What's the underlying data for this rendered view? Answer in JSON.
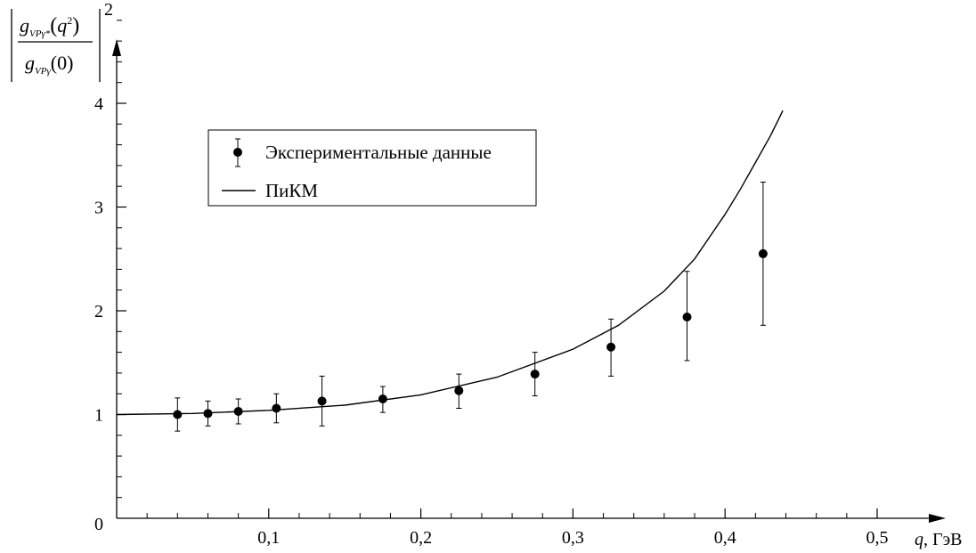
{
  "chart_data": {
    "type": "scatter",
    "xlim": [
      0,
      0.52
    ],
    "ylim": [
      0,
      4.5
    ],
    "x_ticks": [
      {
        "value": 0.1,
        "label": "0,1"
      },
      {
        "value": 0.2,
        "label": "0,2"
      },
      {
        "value": 0.3,
        "label": "0,3"
      },
      {
        "value": 0.4,
        "label": "0,4"
      },
      {
        "value": 0.5,
        "label": "0,5"
      }
    ],
    "y_ticks": [
      {
        "value": 0,
        "label": "0"
      },
      {
        "value": 1,
        "label": "1"
      },
      {
        "value": 2,
        "label": "2"
      },
      {
        "value": 3,
        "label": "3"
      },
      {
        "value": 4,
        "label": "4"
      }
    ],
    "xlabel": {
      "var": "q",
      "unit": ", ГэВ"
    },
    "ylabel": {
      "num_g": "g",
      "num_sub": "VPγ*",
      "num_arg_var": "q",
      "num_arg_pow": "2",
      "den_g": "g",
      "den_sub": "VPγ",
      "den_arg": "(0)",
      "power": "2"
    },
    "legend_position": "top-left",
    "series": [
      {
        "name": "Экспериментальные данные",
        "kind": "points-with-errorbars",
        "color": "#000000",
        "points": [
          {
            "x": 0.04,
            "y": 1.0,
            "err_low": 0.84,
            "err_high": 1.16
          },
          {
            "x": 0.06,
            "y": 1.01,
            "err_low": 0.89,
            "err_high": 1.13
          },
          {
            "x": 0.08,
            "y": 1.03,
            "err_low": 0.91,
            "err_high": 1.15
          },
          {
            "x": 0.105,
            "y": 1.06,
            "err_low": 0.92,
            "err_high": 1.2
          },
          {
            "x": 0.135,
            "y": 1.13,
            "err_low": 0.89,
            "err_high": 1.37
          },
          {
            "x": 0.175,
            "y": 1.15,
            "err_low": 1.02,
            "err_high": 1.27
          },
          {
            "x": 0.225,
            "y": 1.23,
            "err_low": 1.06,
            "err_high": 1.39
          },
          {
            "x": 0.275,
            "y": 1.39,
            "err_low": 1.18,
            "err_high": 1.6
          },
          {
            "x": 0.325,
            "y": 1.65,
            "err_low": 1.37,
            "err_high": 1.92
          },
          {
            "x": 0.375,
            "y": 1.94,
            "err_low": 1.52,
            "err_high": 2.38
          },
          {
            "x": 0.425,
            "y": 2.55,
            "err_low": 1.86,
            "err_high": 3.24
          }
        ]
      },
      {
        "name": "ПиКМ",
        "kind": "line",
        "color": "#000000",
        "x": [
          0,
          0.05,
          0.1,
          0.15,
          0.2,
          0.25,
          0.3,
          0.33,
          0.36,
          0.38,
          0.4,
          0.41,
          0.42,
          0.43,
          0.438
        ],
        "y": [
          1.0,
          1.01,
          1.04,
          1.09,
          1.19,
          1.36,
          1.63,
          1.86,
          2.19,
          2.5,
          2.93,
          3.17,
          3.43,
          3.69,
          3.93
        ]
      }
    ]
  }
}
